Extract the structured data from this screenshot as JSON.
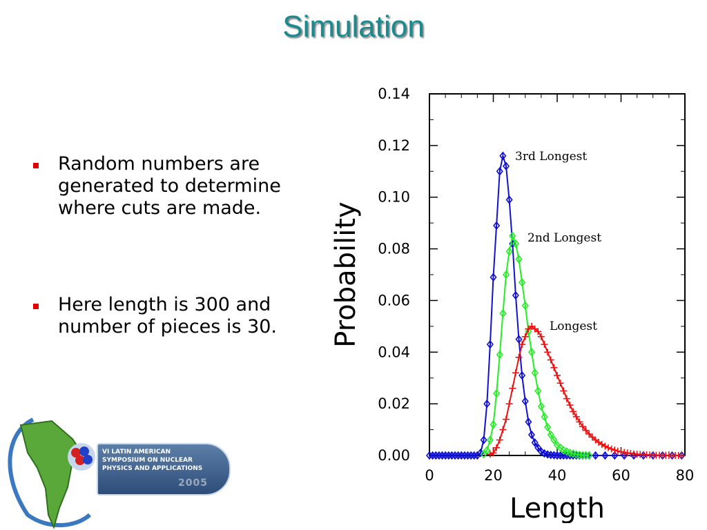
{
  "slide": {
    "title": "Simulation",
    "bullets": [
      "Random numbers are generated to determine where cuts are made.",
      "Here length is 300 and number of pieces is 30."
    ]
  },
  "logo": {
    "lines": [
      "VI LATIN AMERICAN",
      "SYMPOSIUM ON NUCLEAR",
      "PHYSICS AND APPLICATIONS"
    ],
    "year": "2005"
  },
  "chart_data": {
    "type": "line",
    "xlabel": "Length",
    "ylabel": "Probability",
    "xlim": [
      0,
      80
    ],
    "ylim": [
      0,
      0.14
    ],
    "x_ticks": [
      "0",
      "20",
      "40",
      "60",
      "80"
    ],
    "y_ticks": [
      "0.00",
      "0.02",
      "0.04",
      "0.06",
      "0.08",
      "0.10",
      "0.12",
      "0.14"
    ],
    "grid": false,
    "series": [
      {
        "name": "3rd Longest",
        "color": "#1010d0",
        "marker": "diamond-cross",
        "x": [
          0,
          1,
          2,
          3,
          4,
          5,
          6,
          7,
          8,
          9,
          10,
          11,
          12,
          13,
          14,
          15,
          16,
          17,
          18,
          19,
          20,
          21,
          22,
          23,
          24,
          25,
          26,
          27,
          28,
          29,
          30,
          31,
          32,
          33,
          34,
          35,
          36,
          37,
          38,
          39,
          40,
          41,
          42,
          43,
          44,
          45,
          46,
          47,
          48,
          49,
          50,
          52,
          55,
          58,
          61,
          64,
          67,
          70,
          73,
          76,
          79
        ],
        "y": [
          0,
          0,
          0,
          0,
          0,
          0,
          0,
          0,
          0,
          0,
          0,
          0,
          0,
          0,
          0,
          0,
          0.001,
          0.006,
          0.02,
          0.043,
          0.069,
          0.089,
          0.11,
          0.116,
          0.112,
          0.099,
          0.082,
          0.062,
          0.045,
          0.031,
          0.021,
          0.013,
          0.008,
          0.005,
          0.003,
          0.0015,
          0.0008,
          0.0004,
          0.0002,
          0.0001,
          0,
          0,
          0,
          0,
          0,
          0,
          0,
          0,
          0,
          0,
          0,
          0,
          0,
          0,
          0,
          0,
          0,
          0,
          0,
          0,
          0
        ]
      },
      {
        "name": "2nd Longest",
        "color": "#22ee22",
        "marker": "diamond",
        "x": [
          17,
          18,
          19,
          20,
          21,
          22,
          23,
          24,
          25,
          26,
          27,
          28,
          29,
          30,
          31,
          32,
          33,
          34,
          35,
          36,
          37,
          38,
          39,
          40,
          41,
          42,
          43,
          44,
          45,
          46,
          47,
          48,
          49,
          50
        ],
        "y": [
          0.0005,
          0.002,
          0.006,
          0.012,
          0.024,
          0.039,
          0.055,
          0.07,
          0.079,
          0.085,
          0.082,
          0.076,
          0.067,
          0.058,
          0.048,
          0.04,
          0.032,
          0.025,
          0.019,
          0.015,
          0.011,
          0.008,
          0.006,
          0.004,
          0.003,
          0.002,
          0.0015,
          0.001,
          0.0007,
          0.0004,
          0.0002,
          0.0001,
          5e-05,
          0
        ]
      },
      {
        "name": "Longest",
        "color": "#ee1010",
        "marker": "plus",
        "x": [
          19,
          20,
          21,
          22,
          23,
          24,
          25,
          26,
          27,
          28,
          29,
          30,
          31,
          32,
          33,
          34,
          35,
          36,
          37,
          38,
          39,
          40,
          41,
          42,
          43,
          44,
          45,
          46,
          47,
          48,
          49,
          50,
          51,
          52,
          53,
          54,
          55,
          56,
          57,
          58,
          59,
          60,
          61,
          62,
          63,
          64,
          65,
          66,
          67,
          68,
          69,
          70,
          71,
          72,
          73,
          74,
          75,
          76,
          77,
          78,
          79
        ],
        "y": [
          0.0005,
          0.001,
          0.003,
          0.006,
          0.01,
          0.014,
          0.02,
          0.026,
          0.032,
          0.038,
          0.043,
          0.046,
          0.049,
          0.05,
          0.049,
          0.048,
          0.046,
          0.043,
          0.04,
          0.037,
          0.034,
          0.031,
          0.028,
          0.025,
          0.022,
          0.0195,
          0.017,
          0.015,
          0.013,
          0.0112,
          0.0097,
          0.0083,
          0.0071,
          0.006,
          0.0051,
          0.0043,
          0.0036,
          0.003,
          0.0025,
          0.0021,
          0.0017,
          0.0014,
          0.0012,
          0.001,
          0.0008,
          0.0006,
          0.0005,
          0.0004,
          0.0003,
          0.00025,
          0.0002,
          0.00015,
          0.0001,
          0.0001,
          8e-05,
          6e-05,
          4e-05,
          3e-05,
          2e-05,
          1e-05,
          0
        ]
      }
    ]
  }
}
